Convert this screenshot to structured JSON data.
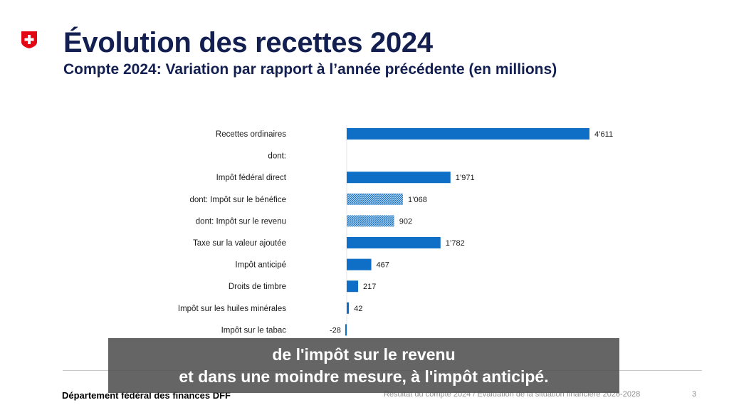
{
  "header": {
    "title": "Évolution des recettes 2024",
    "subtitle": "Compte 2024: Variation par rapport à l’année précédente (en millions)"
  },
  "chart_data": {
    "type": "bar",
    "orientation": "horizontal",
    "categories": [
      "Recettes ordinaires",
      "dont:",
      "Impôt fédéral direct",
      "dont: Impôt sur le bénéfice",
      "dont: Impôt sur le revenu",
      "Taxe sur la valeur ajoutée",
      "Impôt anticipé",
      "Droits de timbre",
      "Impôt sur les huiles minérales",
      "Impôt sur le tabac"
    ],
    "values": [
      4611,
      null,
      1971,
      1068,
      902,
      1782,
      467,
      217,
      42,
      -28
    ],
    "value_labels": [
      "4’611",
      "",
      "1’971",
      "1’068",
      "902",
      "1’782",
      "467",
      "217",
      "42",
      "-28"
    ],
    "hatched": [
      false,
      false,
      false,
      true,
      true,
      false,
      false,
      false,
      false,
      false
    ],
    "xlim": [
      -28,
      4611
    ],
    "grid": false,
    "colors": {
      "bar": "#0f6fc6",
      "hatch": "#0f6fc6"
    }
  },
  "caption": {
    "line1": "de l'impôt sur le revenu",
    "line2": "et dans une moindre mesure, à l'impôt anticipé."
  },
  "footer": {
    "department": "Département fédéral des finances DFF",
    "presentation": "Résultat du compte 2024 / Évaluation de la situation financière 2026-2028",
    "page": "3"
  }
}
